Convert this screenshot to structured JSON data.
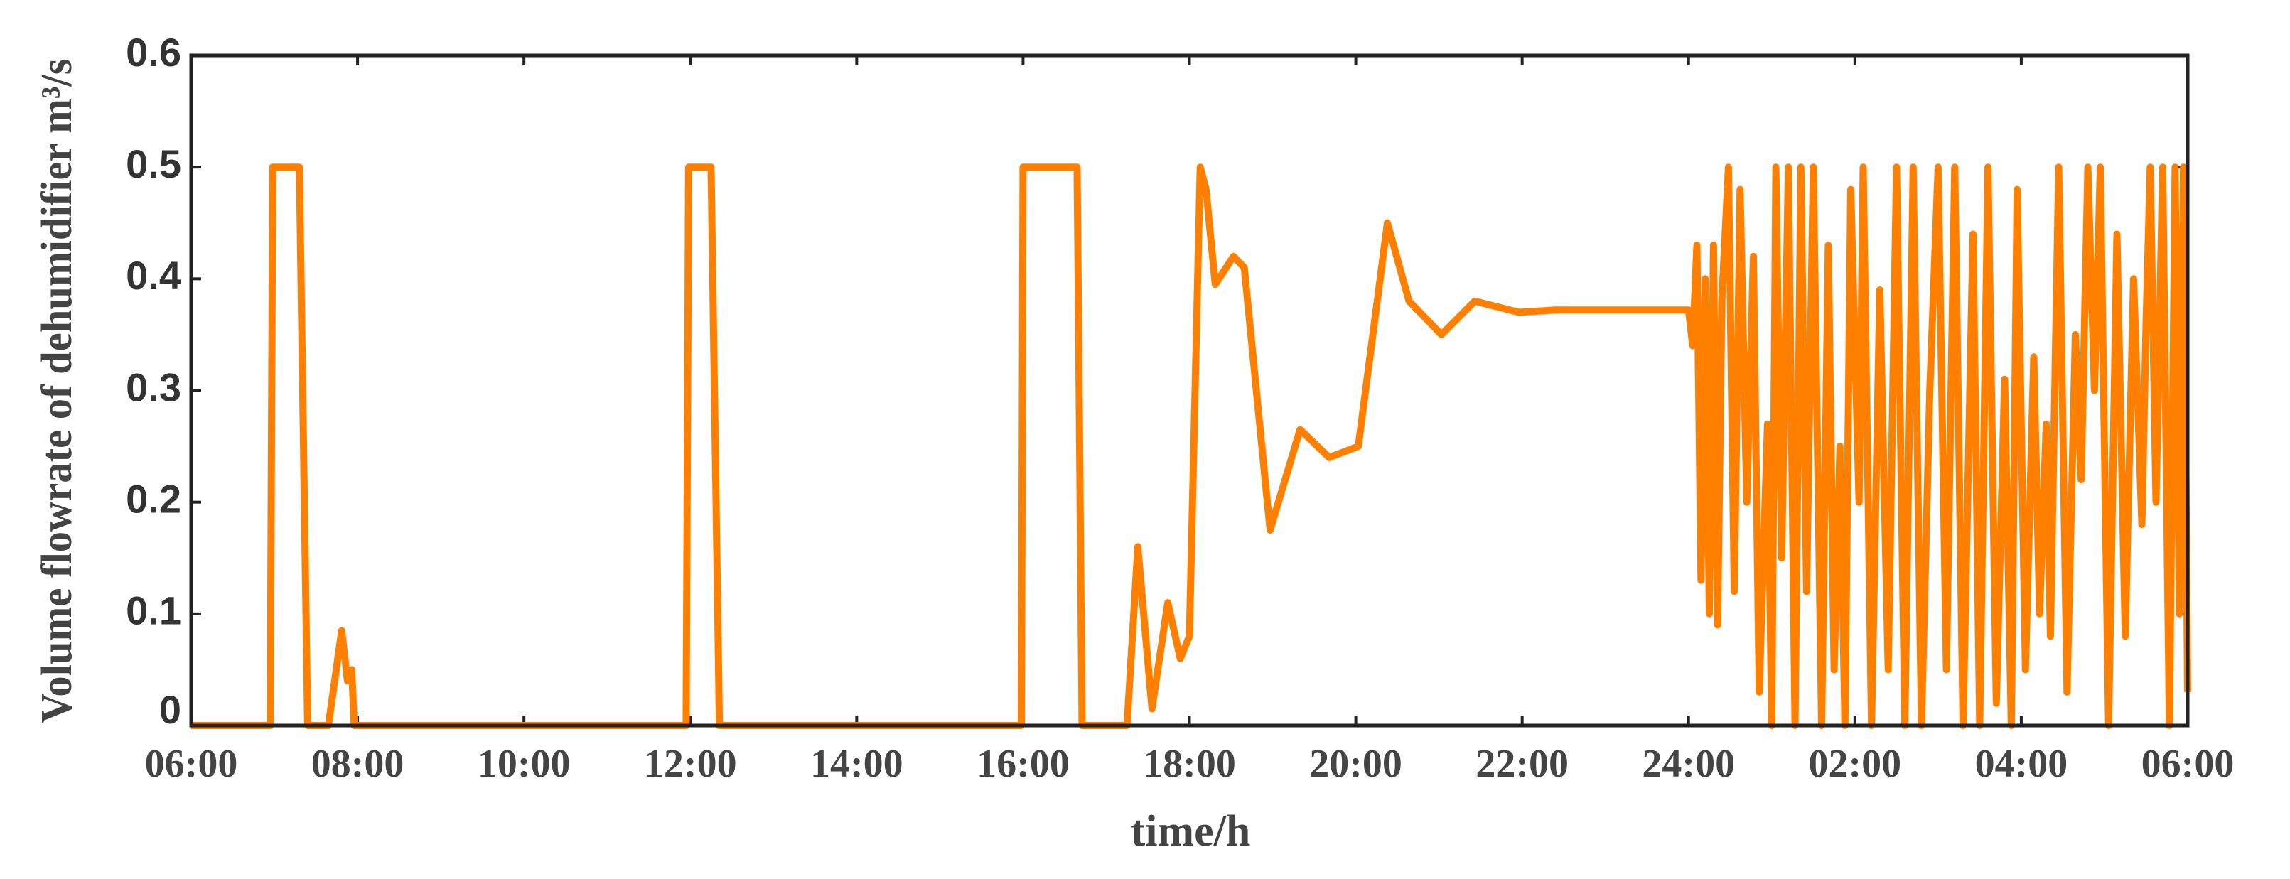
{
  "chart_data": {
    "type": "line",
    "xlabel": "time/h",
    "ylabel": "Volume flowrate of dehumidifier  m³/s",
    "xlim": [
      6,
      30
    ],
    "ylim": [
      0,
      0.6
    ],
    "xticks": [
      {
        "value": 6,
        "label": "06:00"
      },
      {
        "value": 8,
        "label": "08:00"
      },
      {
        "value": 10,
        "label": "10:00"
      },
      {
        "value": 12,
        "label": "12:00"
      },
      {
        "value": 14,
        "label": "14:00"
      },
      {
        "value": 16,
        "label": "16:00"
      },
      {
        "value": 18,
        "label": "18:00"
      },
      {
        "value": 20,
        "label": "20:00"
      },
      {
        "value": 22,
        "label": "22:00"
      },
      {
        "value": 24,
        "label": "24:00"
      },
      {
        "value": 26,
        "label": "02:00"
      },
      {
        "value": 28,
        "label": "04:00"
      },
      {
        "value": 30,
        "label": "06:00"
      }
    ],
    "yticks": [
      0,
      0.1,
      0.2,
      0.3,
      0.4,
      0.5,
      0.6
    ],
    "grid": false,
    "series": [
      {
        "color": "#ff7f00",
        "x": [
          6,
          6.95,
          6.98,
          7.3,
          7.4,
          7.65,
          7.81,
          7.88,
          7.93,
          7.96,
          11.95,
          11.98,
          12.25,
          12.35,
          15.98,
          16.0,
          16.65,
          16.71,
          17.25,
          17.38,
          17.55,
          17.74,
          17.89,
          18.0,
          18.13,
          18.2,
          18.31,
          18.53,
          18.66,
          18.97,
          19.33,
          19.68,
          20.03,
          20.38,
          20.64,
          21.03,
          21.43,
          21.96,
          22.4,
          24.0,
          24.05,
          24.1,
          24.15,
          24.2,
          24.25,
          24.3,
          24.35,
          24.4,
          24.48,
          24.55,
          24.62,
          24.7,
          24.78,
          24.85,
          24.95,
          25.0,
          25.05,
          25.12,
          25.2,
          25.28,
          25.35,
          25.42,
          25.5,
          25.6,
          25.68,
          25.75,
          25.82,
          25.88,
          25.95,
          26.05,
          26.1,
          26.2,
          26.3,
          26.4,
          26.5,
          26.6,
          26.7,
          26.8,
          26.9,
          27.0,
          27.1,
          27.2,
          27.3,
          27.42,
          27.5,
          27.6,
          27.7,
          27.8,
          27.88,
          27.95,
          28.05,
          28.15,
          28.22,
          28.3,
          28.35,
          28.45,
          28.55,
          28.65,
          28.72,
          28.8,
          28.88,
          28.95,
          29.05,
          29.15,
          29.25,
          29.35,
          29.45,
          29.5,
          29.55,
          29.62,
          29.7,
          29.78,
          29.85,
          29.9,
          29.95,
          30.0
        ],
        "values": [
          0,
          0,
          0.5,
          0.5,
          0,
          0,
          0.085,
          0.04,
          0.05,
          0,
          0,
          0.5,
          0.5,
          0,
          0,
          0.5,
          0.5,
          0,
          0,
          0.16,
          0.015,
          0.11,
          0.06,
          0.08,
          0.5,
          0.48,
          0.395,
          0.42,
          0.41,
          0.175,
          0.265,
          0.24,
          0.25,
          0.45,
          0.38,
          0.35,
          0.38,
          0.37,
          0.372,
          0.372,
          0.34,
          0.43,
          0.13,
          0.4,
          0.1,
          0.43,
          0.09,
          0.38,
          0.5,
          0.12,
          0.48,
          0.2,
          0.42,
          0.03,
          0.27,
          0,
          0.5,
          0.15,
          0.5,
          0,
          0.5,
          0.12,
          0.5,
          0,
          0.43,
          0.05,
          0.25,
          0,
          0.48,
          0.2,
          0.5,
          0,
          0.39,
          0.05,
          0.5,
          0,
          0.5,
          0,
          0.3,
          0.5,
          0.05,
          0.5,
          0,
          0.44,
          0,
          0.5,
          0.02,
          0.31,
          0,
          0.48,
          0.05,
          0.33,
          0.1,
          0.27,
          0.08,
          0.5,
          0.03,
          0.35,
          0.22,
          0.5,
          0.3,
          0.5,
          0,
          0.44,
          0.08,
          0.4,
          0.18,
          0.36,
          0.5,
          0.2,
          0.5,
          0,
          0.5,
          0.1,
          0.5,
          0.03
        ]
      }
    ]
  }
}
